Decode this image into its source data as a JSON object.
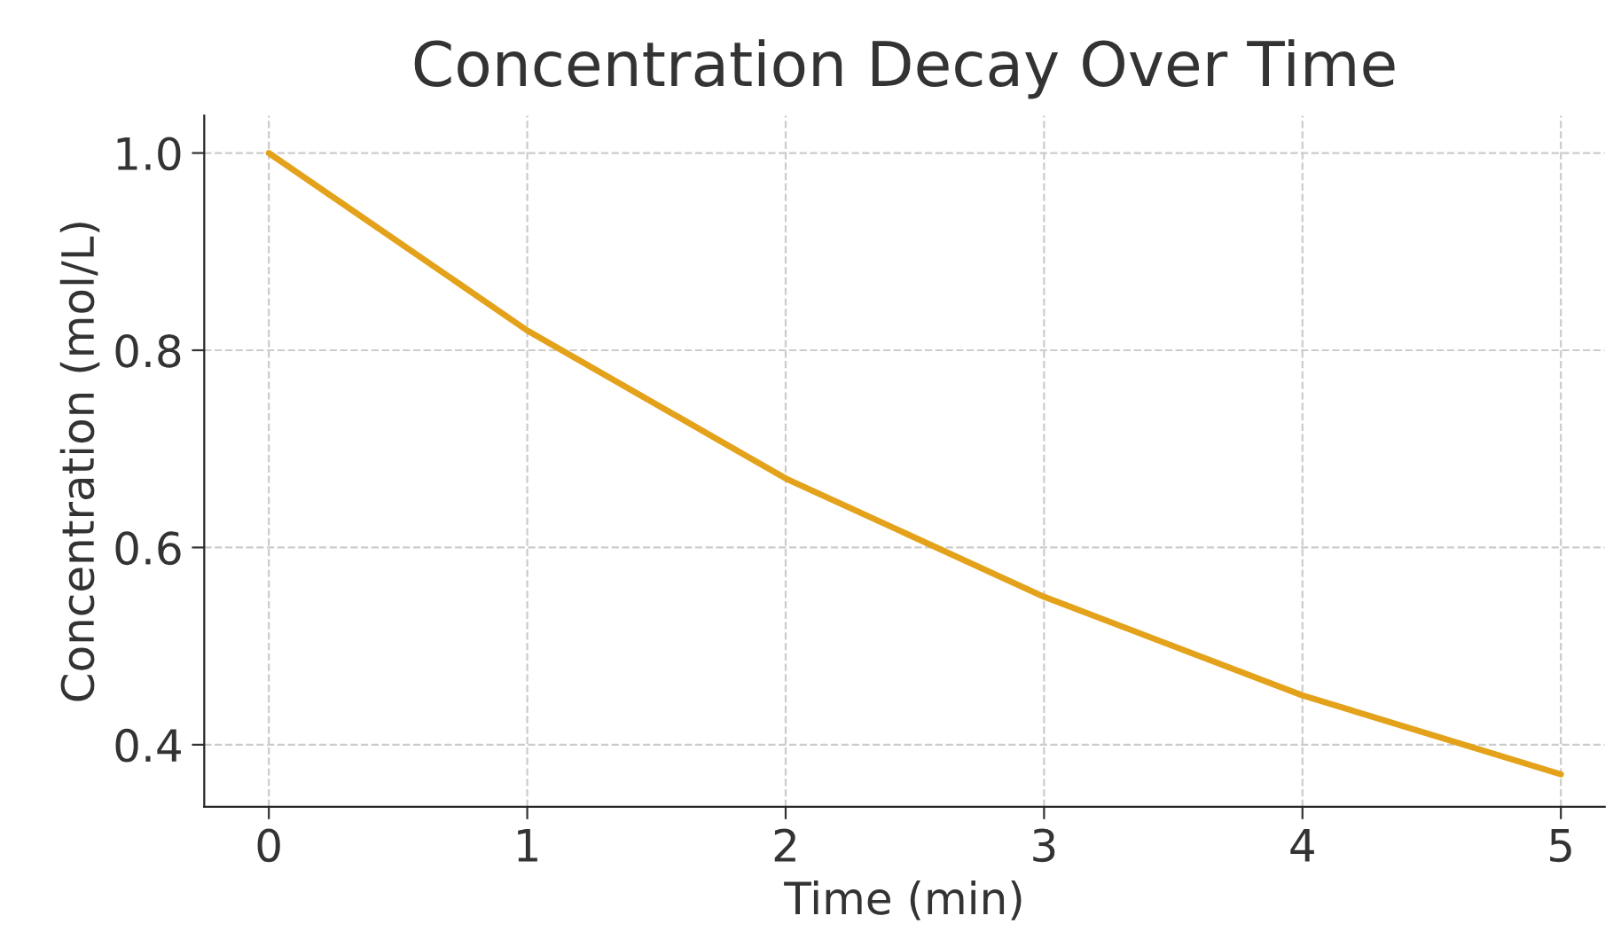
{
  "chart_data": {
    "type": "line",
    "title": "Concentration Decay Over Time",
    "xlabel": "Time (min)",
    "ylabel": "Concentration (mol/L)",
    "x": [
      0,
      1,
      2,
      3,
      4,
      5
    ],
    "series": [
      {
        "color": "#e3a21a",
        "values": [
          1.0,
          0.82,
          0.67,
          0.55,
          0.45,
          0.37
        ]
      }
    ],
    "xlim": [
      -0.25,
      5.17
    ],
    "ylim": [
      0.337,
      1.038
    ],
    "xticks": [
      0,
      1,
      2,
      3,
      4,
      5
    ],
    "yticks": [
      {
        "value": 0.4,
        "label": "0.4"
      },
      {
        "value": 0.6,
        "label": "0.6"
      },
      {
        "value": 0.8,
        "label": "0.8"
      },
      {
        "value": 1.0,
        "label": "1.0"
      }
    ],
    "grid": true,
    "line_style": "solid"
  }
}
